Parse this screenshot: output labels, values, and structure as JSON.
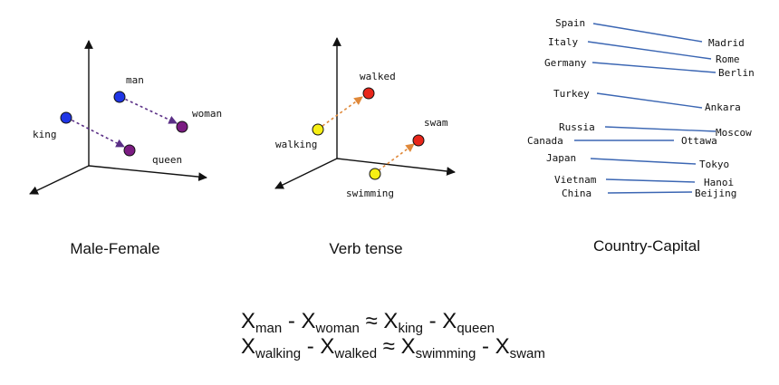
{
  "panels": {
    "male_female": {
      "caption": "Male-Female",
      "words": {
        "man": "man",
        "woman": "woman",
        "king": "king",
        "queen": "queen"
      }
    },
    "verb_tense": {
      "caption": "Verb tense",
      "words": {
        "walked": "walked",
        "walking": "walking",
        "swam": "swam",
        "swimming": "swimming"
      }
    },
    "country_capital": {
      "caption": "Country-Capital",
      "pairs": [
        {
          "country": "Spain",
          "capital": "Madrid"
        },
        {
          "country": "Italy",
          "capital": "Rome"
        },
        {
          "country": "Germany",
          "capital": "Berlin"
        },
        {
          "country": "Turkey",
          "capital": "Ankara"
        },
        {
          "country": "Russia",
          "capital": "Moscow"
        },
        {
          "country": "Canada",
          "capital": "Ottawa"
        },
        {
          "country": "Japan",
          "capital": "Tokyo"
        },
        {
          "country": "Vietnam",
          "capital": "Hanoi"
        },
        {
          "country": "China",
          "capital": "Beijing"
        }
      ]
    }
  },
  "equations": [
    {
      "a": "man",
      "b": "woman",
      "c": "king",
      "d": "queen"
    },
    {
      "a": "walking",
      "b": "walked",
      "c": "swimming",
      "d": "swam"
    }
  ],
  "symbols": {
    "var": "X",
    "minus": "-",
    "approx": "≈"
  },
  "colors": {
    "blue_point": "#1f35e6",
    "purple_point": "#7b1c82",
    "yellow_point": "#f7ef14",
    "red_point": "#e8261a",
    "purple_arrow": "#5a2f86",
    "orange_arrow": "#e0893a",
    "capital_line": "#3b66b3"
  }
}
